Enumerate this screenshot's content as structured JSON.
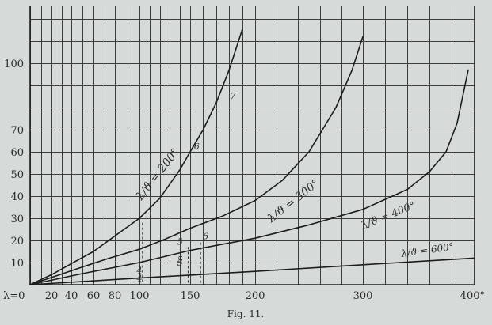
{
  "chart_data": {
    "type": "line",
    "title": "",
    "caption": "Fig. 11.",
    "xlabel": "",
    "ylabel": "",
    "xlim": [
      0,
      400
    ],
    "ylim": [
      0,
      120
    ],
    "x_ticks": [
      {
        "value": 0,
        "label": "λ=0"
      },
      {
        "value": 20,
        "label": "20"
      },
      {
        "value": 40,
        "label": "40"
      },
      {
        "value": 60,
        "label": "60"
      },
      {
        "value": 80,
        "label": "80"
      },
      {
        "value": 100,
        "label": "100"
      },
      {
        "value": 150,
        "label": "150"
      },
      {
        "value": 200,
        "label": "200"
      },
      {
        "value": 300,
        "label": "300"
      },
      {
        "value": 400,
        "label": "400°"
      }
    ],
    "y_ticks": [
      {
        "value": 10,
        "label": "10"
      },
      {
        "value": 20,
        "label": "20"
      },
      {
        "value": 30,
        "label": "30"
      },
      {
        "value": 40,
        "label": "40"
      },
      {
        "value": 50,
        "label": "50"
      },
      {
        "value": 60,
        "label": "60"
      },
      {
        "value": 70,
        "label": "70"
      },
      {
        "value": 100,
        "label": "100"
      }
    ],
    "grid": true,
    "series": [
      {
        "name": "λ/ϑ = 200°",
        "x": [
          0,
          20,
          40,
          60,
          80,
          100,
          120,
          140,
          150,
          160,
          170,
          180,
          190
        ],
        "y": [
          0,
          4.5,
          9.5,
          15,
          22,
          30,
          39,
          52,
          60,
          70,
          82,
          97,
          115
        ]
      },
      {
        "name": "λ/ϑ = 300°",
        "x": [
          0,
          25,
          50,
          75,
          100,
          125,
          150,
          175,
          200,
          225,
          250,
          275,
          290,
          300
        ],
        "y": [
          0,
          4,
          8,
          12,
          16,
          20.5,
          25.5,
          31,
          38,
          47,
          60,
          80,
          97,
          112
        ]
      },
      {
        "name": "λ/ϑ = 400°",
        "x": [
          0,
          50,
          100,
          150,
          200,
          250,
          300,
          340,
          360,
          375,
          385,
          395
        ],
        "y": [
          0,
          5,
          10,
          15.5,
          21,
          27,
          34,
          43,
          51,
          60,
          73,
          97
        ]
      },
      {
        "name": "λ/ϑ = 600°",
        "x": [
          0,
          100,
          200,
          300,
          400
        ],
        "y": [
          0,
          3,
          6,
          9,
          12
        ]
      }
    ],
    "point_annotations": [
      {
        "label": "4",
        "x": 100,
        "y": 5
      },
      {
        "label": "4",
        "x": 100,
        "y": 1.5
      },
      {
        "label": "5",
        "x": 140,
        "y": 18
      },
      {
        "label": "5",
        "x": 140,
        "y": 10
      },
      {
        "label": "5",
        "x": 140,
        "y": 8.5
      },
      {
        "label": "6",
        "x": 162,
        "y": 20.5
      },
      {
        "label": "6",
        "x": 155,
        "y": 61
      },
      {
        "label": "7",
        "x": 183,
        "y": 84
      }
    ],
    "guide_lines": [
      {
        "x": 103,
        "y_top": 28
      },
      {
        "x": 148,
        "y_top": 17
      },
      {
        "x": 158,
        "y_top": 19
      }
    ]
  }
}
